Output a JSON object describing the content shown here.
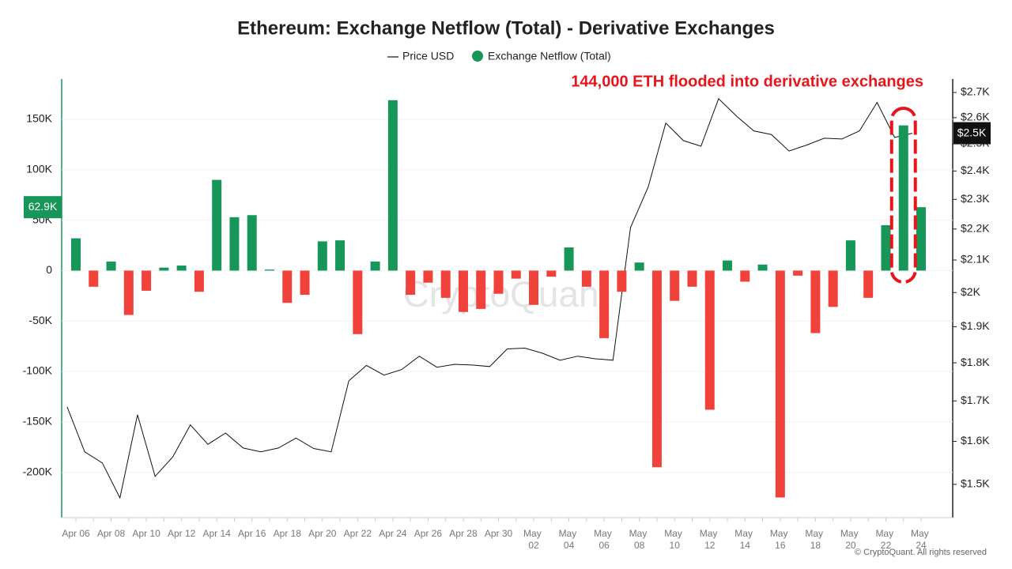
{
  "chart_data": {
    "type": "bar",
    "title": "Ethereum: Exchange Netflow (Total) - Derivative Exchanges",
    "annotation": "144,000 ETH flooded into derivative exchanges",
    "watermark": "CryptoQuant",
    "footer": "© CryptoQuant. All rights reserved",
    "legend": "top",
    "grid": true,
    "categories": [
      "Apr 06",
      null,
      "Apr 08",
      null,
      "Apr 10",
      null,
      "Apr 12",
      null,
      "Apr 14",
      null,
      "Apr 16",
      null,
      "Apr 18",
      null,
      "Apr 20",
      null,
      "Apr 22",
      null,
      "Apr 24",
      null,
      "Apr 26",
      null,
      "Apr 28",
      null,
      "Apr 30",
      null,
      "May 02",
      null,
      "May 04",
      null,
      "May 06",
      null,
      "May 08",
      null,
      "May 10",
      null,
      "May 12",
      null,
      "May 14",
      null,
      "May 16",
      null,
      "May 18",
      null,
      "May 20",
      null,
      "May 22",
      null,
      "May 24"
    ],
    "series": [
      {
        "name": "Price USD",
        "type": "line",
        "axis": "y2",
        "color": "#111111",
        "values": [
          1685,
          1575,
          1549,
          1470,
          1665,
          1518,
          1563,
          1640,
          1593,
          1620,
          1584,
          1575,
          1584,
          1608,
          1583,
          1575,
          1752,
          1793,
          1767,
          1782,
          1818,
          1788,
          1796,
          1794,
          1790,
          1838,
          1840,
          1826,
          1807,
          1818,
          1811,
          1807,
          2205,
          2343,
          2579,
          2512,
          2491,
          2675,
          2607,
          2549,
          2535,
          2473,
          2495,
          2521,
          2518,
          2549,
          2660,
          2524,
          2540
        ],
        "value_labels": [
          null,
          null,
          null,
          null,
          null,
          null,
          null,
          null,
          null,
          null,
          null,
          null,
          null,
          null,
          null,
          null,
          null,
          null,
          null,
          null,
          null,
          null,
          null,
          null,
          null,
          null,
          null,
          null,
          null,
          null,
          null,
          null,
          null,
          null,
          null,
          null,
          null,
          null,
          null,
          null,
          null,
          null,
          null,
          null,
          null,
          null,
          null,
          null,
          "$2.5K"
        ]
      },
      {
        "name": "Exchange Netflow (Total)",
        "type": "bar",
        "color": "#17965a",
        "negative_color": "#f0423a",
        "values": [
          32000,
          -16000,
          9000,
          -44000,
          -20000,
          3000,
          5000,
          -21000,
          90000,
          53000,
          55000,
          1000,
          -32000,
          -24000,
          29000,
          30000,
          -63000,
          9000,
          169000,
          -24000,
          -12000,
          -27000,
          -41000,
          -38000,
          -23000,
          -8000,
          -34000,
          -6000,
          23000,
          -16000,
          -67000,
          -21000,
          8000,
          -195000,
          -30000,
          -16000,
          -138000,
          10000,
          -11000,
          6000,
          -225000,
          -5000,
          -62000,
          -36000,
          30000,
          -27000,
          45000,
          144000,
          62900
        ],
        "value_labels": [
          null,
          null,
          null,
          null,
          null,
          null,
          null,
          null,
          null,
          null,
          null,
          null,
          null,
          null,
          null,
          null,
          null,
          null,
          null,
          null,
          null,
          null,
          null,
          null,
          null,
          null,
          null,
          null,
          null,
          null,
          null,
          null,
          null,
          null,
          null,
          null,
          null,
          null,
          null,
          null,
          null,
          null,
          null,
          null,
          null,
          null,
          null,
          null,
          "62.9K"
        ]
      }
    ],
    "ylim": [
      -245000,
      190000
    ],
    "yticks": [
      {
        "value": 150000,
        "label": "150K"
      },
      {
        "value": 100000,
        "label": "100K"
      },
      {
        "value": 50000,
        "label": "50K"
      },
      0,
      {
        "value": -50000,
        "label": "-50K"
      },
      {
        "value": -100000,
        "label": "-100K"
      },
      {
        "value": -150000,
        "label": "-150K"
      },
      {
        "value": -200000,
        "label": "-200K"
      }
    ],
    "y2lim": [
      1427,
      2755
    ],
    "y2log": true,
    "y2ticks": [
      {
        "value": 2700,
        "label": "$2.7K"
      },
      {
        "value": 2600,
        "label": "$2.6K"
      },
      {
        "value": 2500,
        "label": "$2.5K"
      },
      {
        "value": 2400,
        "label": "$2.4K"
      },
      {
        "value": 2300,
        "label": "$2.3K"
      },
      {
        "value": 2200,
        "label": "$2.2K"
      },
      {
        "value": 2100,
        "label": "$2.1K"
      },
      {
        "value": 2000,
        "label": "$2K"
      },
      {
        "value": 1900,
        "label": "$1.9K"
      },
      {
        "value": 1800,
        "label": "$1.8K"
      },
      {
        "value": 1700,
        "label": "$1.7K"
      },
      {
        "value": 1600,
        "label": "$1.6K"
      },
      {
        "value": 1500,
        "label": "$1.5K"
      }
    ]
  }
}
